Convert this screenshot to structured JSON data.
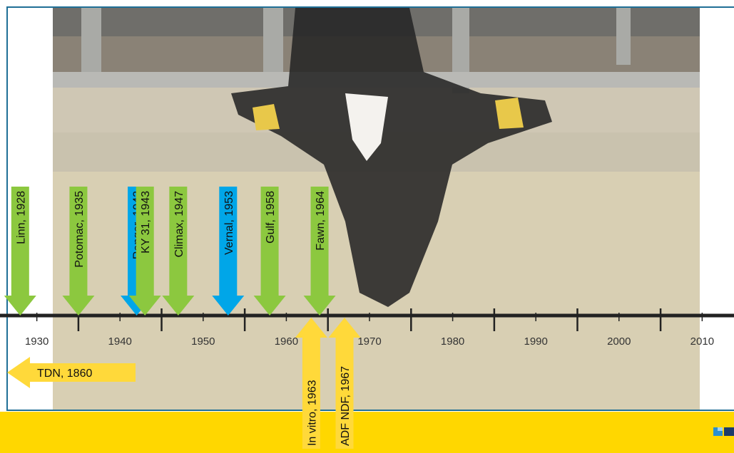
{
  "axis": {
    "min": 1926,
    "max": 2014,
    "ticks": [
      1930,
      1940,
      1950,
      1960,
      1970,
      1980,
      1990,
      2000,
      2010
    ],
    "tick_labels": [
      "1930",
      "1940",
      "1950",
      "1960",
      "1970",
      "1980",
      "1990",
      "2000",
      "2010"
    ],
    "minor_ticks": [
      1935,
      1945,
      1955,
      1965,
      1975,
      1985,
      1995,
      2005
    ]
  },
  "down_arrows": [
    {
      "label": "Linn, 1928",
      "year": 1928,
      "color": "#8cc83f"
    },
    {
      "label": "Potomac, 1935",
      "year": 1935,
      "color": "#8cc83f"
    },
    {
      "label": "Ranger, 1942",
      "year": 1942,
      "color": "#00a6e8"
    },
    {
      "label": "KY 31, 1943",
      "year": 1943,
      "color": "#8cc83f"
    },
    {
      "label": "Climax, 1947",
      "year": 1947,
      "color": "#8cc83f"
    },
    {
      "label": "Vernal, 1953",
      "year": 1953,
      "color": "#00a6e8"
    },
    {
      "label": "Gulf, 1958",
      "year": 1958,
      "color": "#8cc83f"
    },
    {
      "label": "Fawn, 1964",
      "year": 1964,
      "color": "#8cc83f"
    }
  ],
  "up_arrows": [
    {
      "label": "In vitro, 1963",
      "year": 1963,
      "color": "#ffd93a"
    },
    {
      "label": "ADF NDF, 1967",
      "year": 1967,
      "color": "#ffd93a"
    }
  ],
  "left_arrow": {
    "label": "TDN, 1860",
    "color": "#ffd93a"
  },
  "colors": {
    "frame": "#1f6f96",
    "footer": "#ffd700",
    "axis": "#222222"
  }
}
